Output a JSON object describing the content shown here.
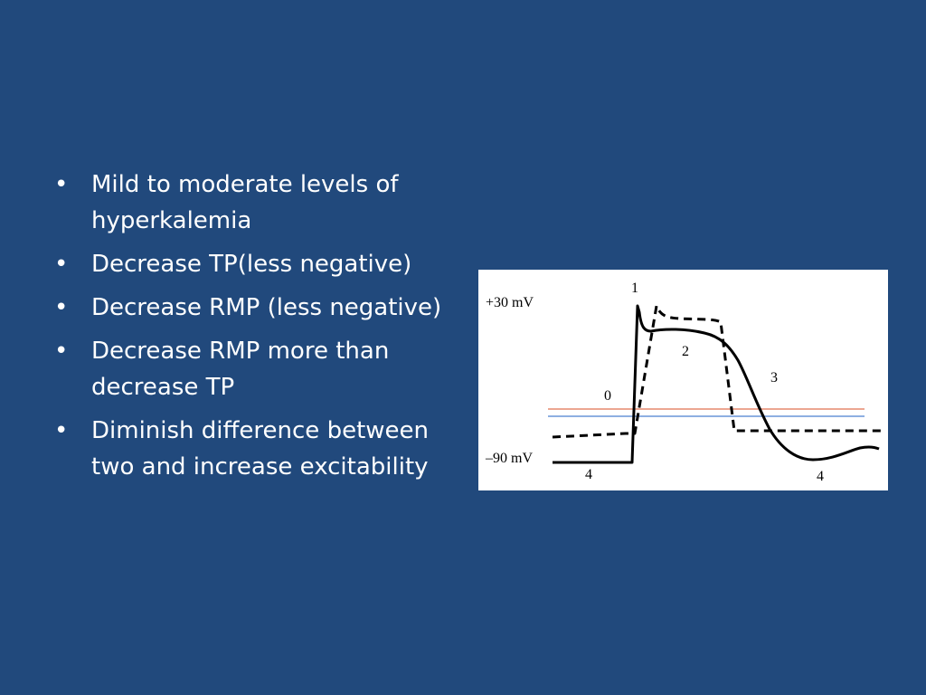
{
  "colors": {
    "background": "#21497c",
    "text": "#ffffff",
    "figure_background": "#ffffff",
    "curve": "#000000",
    "threshold_line": "#e07050",
    "resting_line": "#4a7fd0"
  },
  "bullets": [
    {
      "text": "Mild to moderate levels of hyperkalemia"
    },
    {
      "text": "Decrease TP(less negative)"
    },
    {
      "text": "Decrease RMP (less negative)"
    },
    {
      "text": "Decrease RMP more than decrease TP"
    },
    {
      "text": "Diminish difference between two and increase excitability"
    }
  ],
  "bullet_symbol": "•",
  "figure": {
    "label_top": "+30 mV",
    "label_bottom": "–90 mV",
    "phase_labels": {
      "phase1": "1",
      "phase2": "2",
      "phase3": "3",
      "phase0": "0",
      "phase4_left": "4",
      "phase4_right": "4"
    },
    "curves": [
      "normal action potential (solid)",
      "hyperkalemia action potential (dashed)"
    ]
  }
}
